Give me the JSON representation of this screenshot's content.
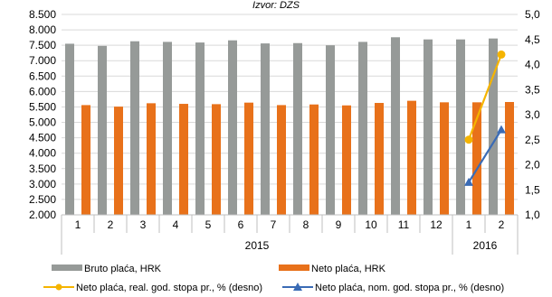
{
  "chart_data": {
    "type": "bar",
    "source_note": "Izvor: DZS",
    "categories": [
      "1",
      "2",
      "3",
      "4",
      "5",
      "6",
      "7",
      "8",
      "9",
      "10",
      "11",
      "12",
      "1",
      "2"
    ],
    "groups": [
      {
        "label": "2015",
        "count": 12
      },
      {
        "label": "2016",
        "count": 2
      }
    ],
    "y_left": {
      "min": 2000,
      "max": 8500,
      "step": 500,
      "ticks": [
        "2.000",
        "2.500",
        "3.000",
        "3.500",
        "4.000",
        "4.500",
        "5.000",
        "5.500",
        "6.000",
        "6.500",
        "7.000",
        "7.500",
        "8.000",
        "8.500"
      ]
    },
    "y_right": {
      "min": 1.0,
      "max": 5.0,
      "step": 0.5,
      "ticks": [
        "1,0",
        "1,5",
        "2,0",
        "2,5",
        "3,0",
        "3,5",
        "4,0",
        "4,5",
        "5,0"
      ]
    },
    "series": [
      {
        "name": "Bruto plaća, HRK",
        "type": "bar",
        "axis": "left",
        "color": "#969a98",
        "values": [
          7550,
          7480,
          7630,
          7610,
          7590,
          7660,
          7560,
          7570,
          7500,
          7610,
          7760,
          7690,
          7690,
          7720
        ]
      },
      {
        "name": "Neto plaća, HRK",
        "type": "bar",
        "axis": "left",
        "color": "#e8711a",
        "values": [
          5560,
          5510,
          5620,
          5600,
          5590,
          5640,
          5560,
          5580,
          5550,
          5630,
          5700,
          5650,
          5650,
          5660
        ]
      },
      {
        "name": "Neto plaća, real. god. stopa pr., % (desno)",
        "type": "line",
        "axis": "right",
        "color": "#f5b400",
        "marker": "circle",
        "values": [
          null,
          null,
          null,
          null,
          null,
          null,
          null,
          null,
          null,
          null,
          null,
          null,
          2.5,
          4.2
        ]
      },
      {
        "name": "Neto plaća, nom. god. stopa pr., % (desno)",
        "type": "line",
        "axis": "right",
        "color": "#3a6bb5",
        "marker": "triangle",
        "values": [
          null,
          null,
          null,
          null,
          null,
          null,
          null,
          null,
          null,
          null,
          null,
          null,
          1.65,
          2.7
        ]
      }
    ],
    "grid": true
  }
}
